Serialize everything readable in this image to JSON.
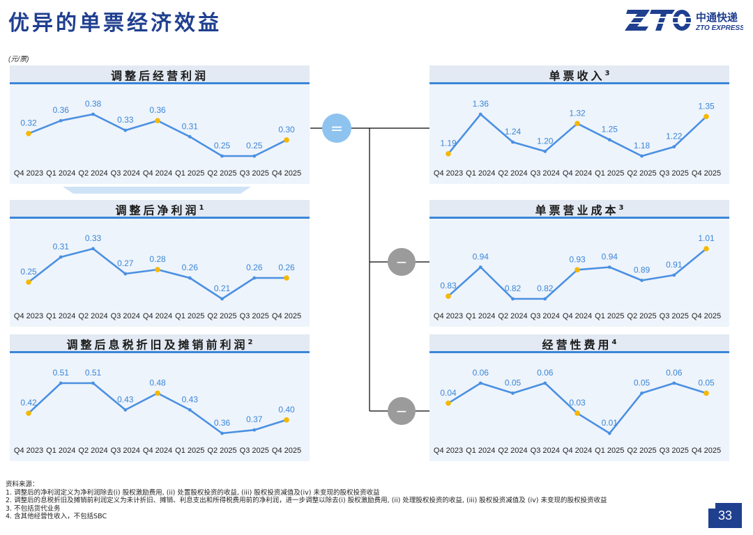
{
  "page": {
    "title": "优异的单票经济效益",
    "unit": "(元/票)",
    "page_number": "33",
    "logo": {
      "mark": "ZTO",
      "cn": "中通快递",
      "en": "ZTO EXPRESS",
      "color": "#1f3f8f"
    }
  },
  "colors": {
    "line": "#4a90e2",
    "marker": "#f5b800",
    "header_rule": "#3a86d8",
    "panel_bg": "#eef4fb",
    "op_equal": "#8ec3f0",
    "op_minus": "#9b9b9b"
  },
  "operators": {
    "equal": "=",
    "minus": "−"
  },
  "footnotes": {
    "heading": "资料来源：",
    "items": [
      "1. 调整后的净利润定义为净利润除去(i) 股权激励费用, (ii) 处置股权投资的收益, (iii) 股权投资减值及(iv) 未变现的股权投资收益",
      "2. 调整后的息税折旧及摊销前利润定义为未计折旧、摊销、利息支出和所得税费用前的净利润，进一步调整以除去(i) 股权激励费用, (ii) 处理股权投资的收益, (iii) 股权投资减值及 (iv) 未变现的股权投资收益",
      "3. 不包括货代业务",
      "4. 含其他经营性收入，不包括SBC"
    ]
  },
  "chart_data": [
    {
      "id": "adj-op-profit",
      "type": "line",
      "title": "调整后经营利润",
      "title_sup": "",
      "categories": [
        "Q4 2023",
        "Q1 2024",
        "Q2 2024",
        "Q3 2024",
        "Q4 2024",
        "Q1 2025",
        "Q2 2025",
        "Q3 2025",
        "Q4 2025"
      ],
      "values": [
        0.32,
        0.36,
        0.38,
        0.33,
        0.36,
        0.31,
        0.25,
        0.25,
        0.3
      ],
      "labels": [
        "0.32",
        "0.36",
        "0.38",
        "0.33",
        "0.36",
        "0.31",
        "0.25",
        "0.25",
        "0.30"
      ],
      "highlight": [
        0,
        4,
        8
      ]
    },
    {
      "id": "adj-net-profit",
      "type": "line",
      "title": "调整后净利润",
      "title_sup": "1",
      "categories": [
        "Q4 2023",
        "Q1 2024",
        "Q2 2024",
        "Q3 2024",
        "Q4 2024",
        "Q1 2025",
        "Q2 2025",
        "Q3 2025",
        "Q4 2025"
      ],
      "values": [
        0.25,
        0.31,
        0.33,
        0.27,
        0.28,
        0.26,
        0.21,
        0.26,
        0.26
      ],
      "labels": [
        "0.25",
        "0.31",
        "0.33",
        "0.27",
        "0.28",
        "0.26",
        "0.21",
        "0.26",
        "0.26"
      ],
      "highlight": [
        0,
        4,
        8
      ]
    },
    {
      "id": "adj-ebitda",
      "type": "line",
      "title": "调整后息税折旧及摊销前利润",
      "title_sup": "2",
      "categories": [
        "Q4 2023",
        "Q1 2024",
        "Q2 2024",
        "Q3 2024",
        "Q4 2024",
        "Q1 2025",
        "Q2 2025",
        "Q3 2025",
        "Q4 2025"
      ],
      "values": [
        0.42,
        0.51,
        0.51,
        0.43,
        0.48,
        0.43,
        0.36,
        0.37,
        0.4
      ],
      "labels": [
        "0.42",
        "0.51",
        "0.51",
        "0.43",
        "0.48",
        "0.43",
        "0.36",
        "0.37",
        "0.40"
      ],
      "highlight": [
        0,
        4,
        8
      ]
    },
    {
      "id": "rev-per-parcel",
      "type": "line",
      "title": "单票收入",
      "title_sup": "3",
      "categories": [
        "Q4 2023",
        "Q1 2024",
        "Q2 2024",
        "Q3 2024",
        "Q4 2024",
        "Q1 2025",
        "Q2 2025",
        "Q3 2025",
        "Q4 2025"
      ],
      "values": [
        1.19,
        1.36,
        1.24,
        1.2,
        1.32,
        1.25,
        1.18,
        1.22,
        1.35
      ],
      "labels": [
        "1.19",
        "1.36",
        "1.24",
        "1.20",
        "1.32",
        "1.25",
        "1.18",
        "1.22",
        "1.35"
      ],
      "highlight": [
        0,
        4,
        8
      ]
    },
    {
      "id": "cost-per-parcel",
      "type": "line",
      "title": "单票营业成本",
      "title_sup": "3",
      "categories": [
        "Q4 2023",
        "Q1 2024",
        "Q2 2024",
        "Q3 2024",
        "Q4 2024",
        "Q1 2025",
        "Q2 2025",
        "Q3 2025",
        "Q4 2025"
      ],
      "values": [
        0.83,
        0.94,
        0.82,
        0.82,
        0.93,
        0.94,
        0.89,
        0.91,
        1.01
      ],
      "labels": [
        "0.83",
        "0.94",
        "0.82",
        "0.82",
        "0.93",
        "0.94",
        "0.89",
        "0.91",
        "1.01"
      ],
      "highlight": [
        0,
        4,
        8
      ]
    },
    {
      "id": "opex-per-parcel",
      "type": "line",
      "title": "经营性费用",
      "title_sup": "4",
      "categories": [
        "Q4 2023",
        "Q1 2024",
        "Q2 2024",
        "Q3 2024",
        "Q4 2024",
        "Q1 2025",
        "Q2 2025",
        "Q3 2025",
        "Q4 2025"
      ],
      "values": [
        0.04,
        0.06,
        0.05,
        0.06,
        0.03,
        0.01,
        0.05,
        0.06,
        0.05
      ],
      "labels": [
        "0.04",
        "0.06",
        "0.05",
        "0.06",
        "0.03",
        "0.01",
        "0.05",
        "0.06",
        "0.05"
      ],
      "highlight": [
        0,
        4,
        8
      ]
    }
  ]
}
